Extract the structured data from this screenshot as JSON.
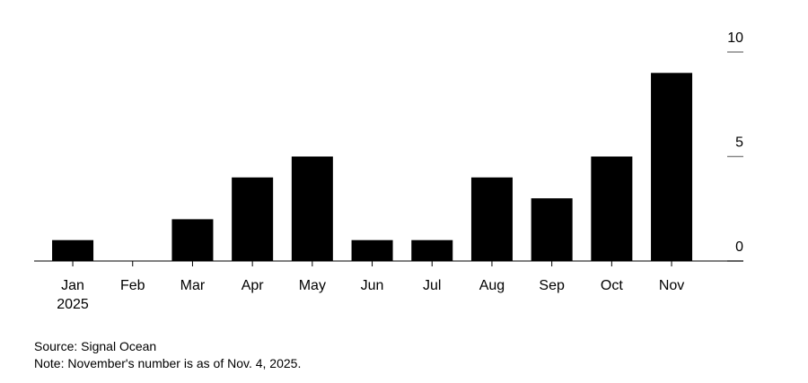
{
  "chart_data": {
    "type": "bar",
    "categories": [
      "Jan",
      "Feb",
      "Mar",
      "Apr",
      "May",
      "Jun",
      "Jul",
      "Aug",
      "Sep",
      "Oct",
      "Nov"
    ],
    "year": "2025",
    "values": [
      1,
      0,
      2,
      4,
      5,
      1,
      1,
      4,
      3,
      5,
      9
    ],
    "color": "#000000",
    "ylim": [
      0,
      10
    ],
    "yticks": [
      0,
      5,
      10
    ],
    "source": "Source: Signal Ocean",
    "note": "Note: November's number is as of Nov. 4, 2025."
  }
}
